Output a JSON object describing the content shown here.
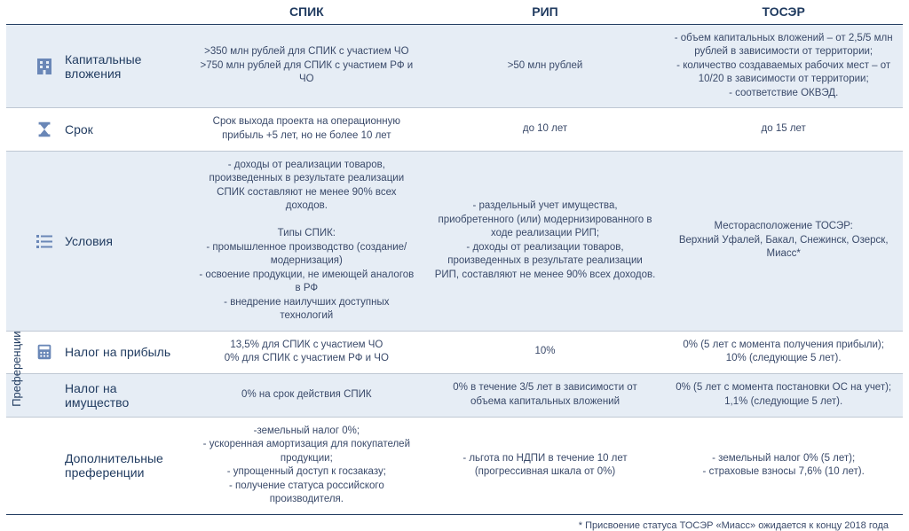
{
  "headers": {
    "col1": "СПИК",
    "col2": "РИП",
    "col3": "ТОСЭР"
  },
  "rows": {
    "capex": {
      "label": "Капитальные вложения",
      "spik": ">350 млн рублей для СПИК с участием ЧО\n>750 млн рублей для СПИК с участием РФ и ЧО",
      "rip": ">50 млн рублей",
      "toser": "- объем капитальных вложений – от 2,5/5 млн рублей в зависимости от территории;\n- количество создаваемых рабочих мест – от 10/20 в зависимости от территории;\n- соответствие ОКВЭД."
    },
    "term": {
      "label": "Срок",
      "spik": "Срок выхода проекта на операционную прибыль +5 лет, но не более 10 лет",
      "rip": "до 10 лет",
      "toser": "до 15 лет"
    },
    "cond": {
      "label": "Условия",
      "spik": "- доходы от реализации товаров, произведенных в результате реализации СПИК составляют не менее 90% всех доходов.\n\nТипы СПИК:\n- промышленное производство (создание/модернизация)\n- освоение продукции, не имеющей аналогов в РФ\n- внедрение наилучших доступных технологий",
      "rip": "- раздельный учет имущества, приобретенного (или) модернизированного в ходе реализации РИП;\n- доходы от реализации товаров, произведенных в результате реализации РИП, составляют не менее 90% всех доходов.",
      "toser": "Месторасположение ТОСЭР:\nВерхний Уфалей, Бакал, Снежинск, Озерск, Миасс*"
    },
    "profit_tax": {
      "label": "Налог на прибыль",
      "spik": "13,5% для СПИК с участием ЧО\n0% для СПИК с участием РФ и ЧО",
      "rip": "10%",
      "toser": "0% (5 лет с момента получения прибыли);\n10% (следующие 5 лет)."
    },
    "prop_tax": {
      "label": "Налог на имущество",
      "spik": "0% на срок действия СПИК",
      "rip": "0% в течение 3/5 лет в зависимости от объема капитальных вложений",
      "toser": "0% (5 лет с момента постановки ОС на учет);\n1,1% (следующие 5 лет)."
    },
    "extra": {
      "label": "Дополнительные преференции",
      "spik": "-земельный налог 0%;\n- ускоренная амортизация для покупателей продукции;\n- упрощенный доступ к госзаказу;\n- получение статуса российского производителя.",
      "rip": "- льгота по НДПИ в течение 10 лет (прогрессивная шкала от 0%)",
      "toser": "- земельный налог 0% (5 лет);\n- страховые взносы 7,6% (10 лет)."
    }
  },
  "preferences_label": "Преференции",
  "footnote": "* Присвоение статуса ТОСЭР «Миасс» ожидается к концу 2018 года",
  "colors": {
    "alt_bg": "#e6edf5",
    "text": "#2a3a5a",
    "border": "#1f3a5f",
    "icon": "#6a87b7"
  }
}
